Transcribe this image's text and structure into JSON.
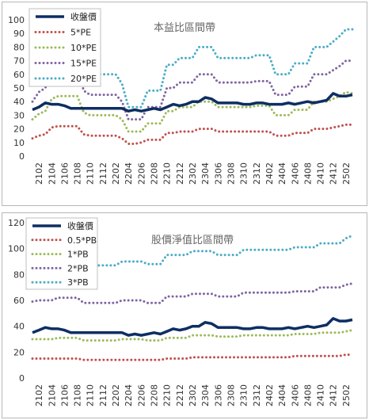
{
  "charts": [
    {
      "chart_data": {
        "type": "line",
        "title": "本益比區間帶",
        "ylim": [
          0,
          100
        ],
        "yticks": [
          0,
          10,
          20,
          30,
          40,
          50,
          60,
          70,
          80,
          90,
          100
        ],
        "grid": false,
        "legend": "top-left",
        "x_labels": [
          "2102",
          "2104",
          "2106",
          "2108",
          "2110",
          "2112",
          "2202",
          "2204",
          "2206",
          "2208",
          "2210",
          "2212",
          "2302",
          "2304",
          "2306",
          "2308",
          "2310",
          "2312",
          "2402",
          "2404",
          "2406",
          "2408",
          "2410",
          "2412",
          "2502"
        ],
        "x": [
          "2101",
          "2102",
          "2103",
          "2104",
          "2105",
          "2106",
          "2107",
          "2108",
          "2109",
          "2110",
          "2111",
          "2112",
          "2201",
          "2202",
          "2203",
          "2204",
          "2205",
          "2206",
          "2207",
          "2208",
          "2209",
          "2210",
          "2211",
          "2212",
          "2301",
          "2302",
          "2303",
          "2304",
          "2305",
          "2306",
          "2307",
          "2308",
          "2309",
          "2310",
          "2311",
          "2312",
          "2401",
          "2402",
          "2403",
          "2404",
          "2405",
          "2406",
          "2407",
          "2408",
          "2409",
          "2410",
          "2411",
          "2412",
          "2501",
          "2502",
          "2503"
        ],
        "series": [
          {
            "name": "收盤價",
            "color": "#0e2e63",
            "style": "solid",
            "values": [
              34,
              36,
              39,
              38,
              38,
              37,
              35,
              35,
              35,
              35,
              35,
              35,
              35,
              35,
              35,
              33,
              34,
              33,
              34,
              35,
              34,
              36,
              38,
              37,
              38,
              40,
              40,
              43,
              42,
              39,
              39,
              39,
              39,
              38,
              38,
              39,
              39,
              38,
              38,
              38,
              39,
              38,
              39,
              40,
              39,
              40,
              41,
              46,
              44,
              44,
              45
            ]
          },
          {
            "name": "5*PE",
            "color": "#c0504d",
            "style": "dotted",
            "values": [
              13,
              15,
              16,
              21,
              22,
              22,
              22,
              22,
              16,
              15,
              15,
              15,
              15,
              15,
              13,
              9,
              9,
              10,
              12,
              12,
              12,
              17,
              17,
              18,
              18,
              18,
              20,
              20,
              20,
              18,
              18,
              18,
              18,
              18,
              18,
              18,
              18,
              18,
              15,
              15,
              15,
              17,
              17,
              17,
              20,
              20,
              20,
              21,
              22,
              23,
              23
            ]
          },
          {
            "name": "10*PE",
            "color": "#9bbb59",
            "style": "dotted",
            "values": [
              27,
              31,
              33,
              42,
              44,
              44,
              44,
              44,
              32,
              30,
              30,
              30,
              30,
              30,
              27,
              18,
              18,
              18,
              24,
              24,
              24,
              33,
              33,
              36,
              36,
              36,
              40,
              40,
              40,
              36,
              36,
              36,
              36,
              36,
              36,
              37,
              37,
              37,
              30,
              30,
              30,
              34,
              34,
              34,
              40,
              40,
              40,
              42,
              44,
              47,
              46
            ]
          },
          {
            "name": "15*PE",
            "color": "#8064a2",
            "style": "dotted",
            "values": [
              40,
              47,
              50,
              62,
              66,
              66,
              66,
              66,
              48,
              45,
              45,
              45,
              45,
              45,
              40,
              27,
              27,
              27,
              36,
              36,
              36,
              50,
              50,
              54,
              54,
              54,
              60,
              60,
              60,
              54,
              54,
              54,
              54,
              54,
              54,
              55,
              55,
              55,
              45,
              45,
              45,
              51,
              51,
              51,
              60,
              60,
              60,
              63,
              66,
              70,
              70
            ]
          },
          {
            "name": "20*PE",
            "color": "#4bacc6",
            "style": "dotted",
            "values": [
              53,
              62,
              66,
              83,
              88,
              88,
              88,
              88,
              64,
              60,
              60,
              60,
              60,
              60,
              53,
              36,
              36,
              36,
              48,
              48,
              48,
              67,
              67,
              72,
              72,
              72,
              80,
              80,
              80,
              72,
              72,
              72,
              72,
              72,
              72,
              74,
              74,
              74,
              60,
              60,
              60,
              68,
              68,
              68,
              80,
              80,
              80,
              84,
              88,
              93,
              93
            ]
          }
        ]
      }
    },
    {
      "chart_data": {
        "type": "line",
        "title": "股價淨值比區間帶",
        "ylim": [
          0,
          120
        ],
        "yticks": [
          0,
          20,
          40,
          60,
          80,
          100,
          120
        ],
        "grid": false,
        "legend": "top-left",
        "x_labels": [
          "2102",
          "2104",
          "2106",
          "2108",
          "2110",
          "2112",
          "2202",
          "2204",
          "2206",
          "2208",
          "2210",
          "2212",
          "2302",
          "2304",
          "2306",
          "2308",
          "2310",
          "2312",
          "2402",
          "2404",
          "2406",
          "2408",
          "2410",
          "2412",
          "2502"
        ],
        "x": [
          "2101",
          "2102",
          "2103",
          "2104",
          "2105",
          "2106",
          "2107",
          "2108",
          "2109",
          "2110",
          "2111",
          "2112",
          "2201",
          "2202",
          "2203",
          "2204",
          "2205",
          "2206",
          "2207",
          "2208",
          "2209",
          "2210",
          "2211",
          "2212",
          "2301",
          "2302",
          "2303",
          "2304",
          "2305",
          "2306",
          "2307",
          "2308",
          "2309",
          "2310",
          "2311",
          "2312",
          "2401",
          "2402",
          "2403",
          "2404",
          "2405",
          "2406",
          "2407",
          "2408",
          "2409",
          "2410",
          "2411",
          "2412",
          "2501",
          "2502",
          "2503"
        ],
        "series": [
          {
            "name": "收盤價",
            "color": "#0e2e63",
            "style": "solid",
            "values": [
              35,
              37,
              39,
              38,
              38,
              37,
              35,
              35,
              35,
              35,
              35,
              35,
              35,
              35,
              35,
              33,
              34,
              33,
              34,
              35,
              34,
              36,
              38,
              37,
              38,
              40,
              40,
              43,
              42,
              39,
              39,
              39,
              39,
              38,
              38,
              39,
              39,
              38,
              38,
              38,
              39,
              38,
              39,
              40,
              39,
              40,
              41,
              46,
              44,
              44,
              45
            ]
          },
          {
            "name": "0.5*PB",
            "color": "#c0504d",
            "style": "dotted",
            "values": [
              15,
              15,
              15,
              15,
              15,
              15,
              15,
              15,
              14,
              14,
              14,
              14,
              14,
              14,
              14,
              14,
              14,
              14,
              14,
              14,
              14,
              15,
              15,
              15,
              15,
              16,
              16,
              16,
              16,
              16,
              16,
              16,
              16,
              16,
              16,
              16,
              16,
              16,
              16,
              16,
              16,
              17,
              17,
              17,
              17,
              17,
              17,
              17,
              17,
              18,
              18
            ]
          },
          {
            "name": "1*PB",
            "color": "#9bbb59",
            "style": "dotted",
            "values": [
              30,
              30,
              30,
              30,
              31,
              31,
              31,
              31,
              29,
              29,
              29,
              29,
              29,
              29,
              30,
              30,
              30,
              30,
              29,
              29,
              29,
              31,
              31,
              31,
              31,
              33,
              33,
              33,
              33,
              32,
              32,
              32,
              32,
              33,
              33,
              33,
              33,
              33,
              33,
              33,
              33,
              34,
              34,
              34,
              34,
              35,
              35,
              35,
              35,
              36,
              37
            ]
          },
          {
            "name": "2*PB",
            "color": "#8064a2",
            "style": "dotted",
            "values": [
              59,
              60,
              60,
              60,
              62,
              62,
              62,
              62,
              58,
              58,
              58,
              58,
              58,
              58,
              60,
              60,
              60,
              60,
              58,
              58,
              58,
              63,
              63,
              63,
              63,
              65,
              65,
              65,
              65,
              63,
              63,
              63,
              63,
              66,
              66,
              66,
              66,
              66,
              66,
              66,
              66,
              67,
              67,
              67,
              67,
              70,
              70,
              70,
              70,
              72,
              73
            ]
          },
          {
            "name": "3*PB",
            "color": "#4bacc6",
            "style": "dotted",
            "values": [
              89,
              89,
              90,
              90,
              93,
              93,
              93,
              93,
              87,
              87,
              87,
              87,
              87,
              87,
              90,
              90,
              90,
              90,
              88,
              88,
              88,
              95,
              95,
              95,
              95,
              98,
              98,
              98,
              98,
              95,
              95,
              95,
              95,
              99,
              99,
              99,
              99,
              99,
              99,
              99,
              99,
              101,
              101,
              101,
              101,
              104,
              104,
              104,
              104,
              108,
              110
            ]
          }
        ]
      }
    }
  ]
}
